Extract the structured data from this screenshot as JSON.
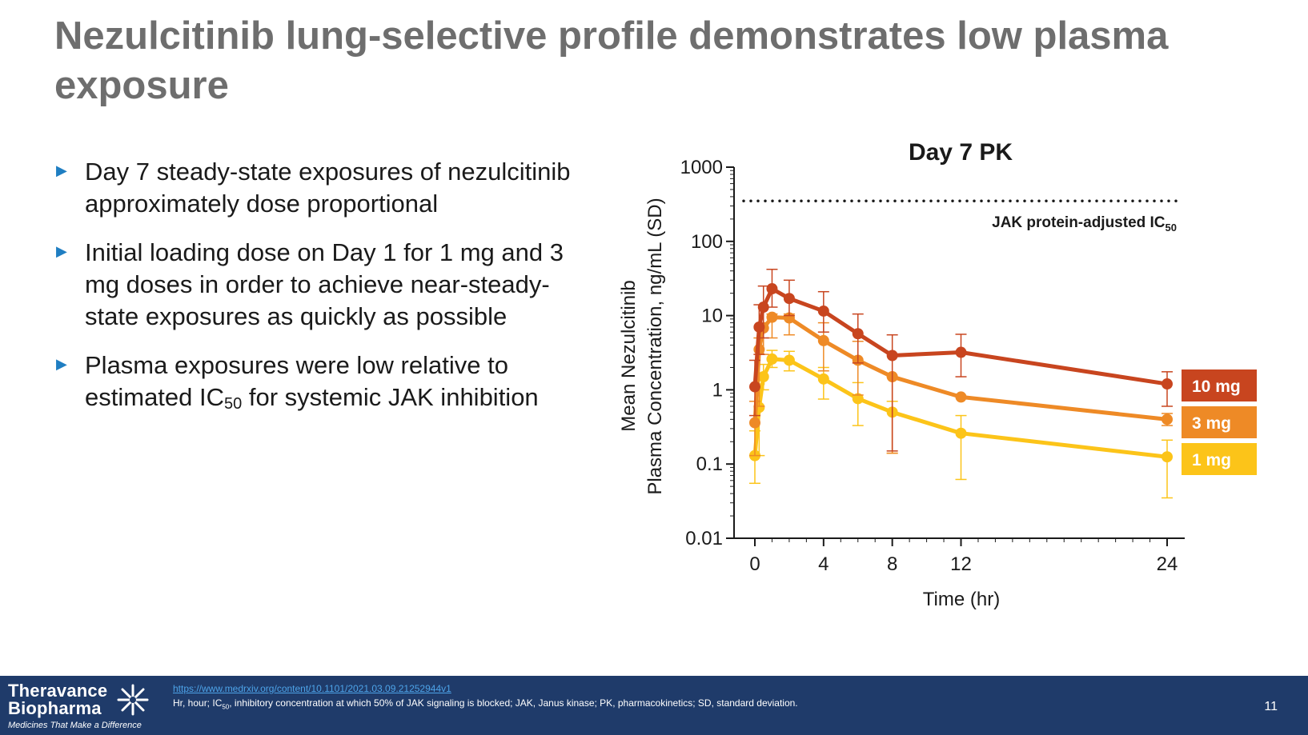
{
  "slide": {
    "title": "Nezulcitinib lung-selective profile demonstrates low plasma exposure",
    "bullets": [
      {
        "text": "Day 7 steady-state exposures of nezulcitinib approximately dose proportional"
      },
      {
        "text": "Initial loading dose on Day 1 for 1 mg and 3 mg doses in order to achieve near-steady-state exposures as quickly as possible"
      },
      {
        "pre": "Plasma exposures were low relative to estimated IC",
        "sub": "50",
        "post": " for systemic JAK inhibition"
      }
    ],
    "bullet_marker": "▶"
  },
  "chart_data": {
    "type": "line",
    "title": "Day 7 PK",
    "xlabel": "Time (hr)",
    "ylabel_line1": "Mean Nezulcitinib",
    "ylabel_line2": "Plasma Concentration, ng/mL (SD)",
    "y_scale": "log",
    "ylim": [
      0.01,
      1000
    ],
    "xlim": [
      0,
      24
    ],
    "x_ticks": [
      0,
      4,
      8,
      12,
      24
    ],
    "x_tick_labels": [
      "0",
      "4",
      "8",
      "12",
      "24"
    ],
    "y_ticks": [
      0.01,
      0.1,
      1,
      10,
      100,
      1000
    ],
    "y_tick_labels": [
      "0.01",
      "0.1",
      "1",
      "10",
      "100",
      "1000"
    ],
    "reference_line": {
      "y": 350,
      "label_main": "JAK protein-adjusted IC",
      "label_sub": "50",
      "style": "dotted"
    },
    "series": [
      {
        "name": "10 mg",
        "color": "#c8451f",
        "x": [
          0,
          0.25,
          0.5,
          1,
          2,
          4,
          6,
          8,
          12,
          24
        ],
        "y": [
          1.1,
          7,
          13,
          23,
          17,
          11.5,
          5.7,
          2.9,
          3.2,
          1.2
        ],
        "err_low": [
          0.45,
          3,
          5,
          13,
          10,
          6,
          2.3,
          0.15,
          1.5,
          0.6
        ],
        "err_high": [
          2.5,
          14,
          25,
          42,
          30,
          21,
          10.5,
          5.5,
          5.6,
          1.75
        ]
      },
      {
        "name": "3 mg",
        "color": "#ee8a26",
        "x": [
          0,
          0.25,
          0.5,
          1,
          2,
          4,
          6,
          8,
          12,
          24
        ],
        "y": [
          0.36,
          3.5,
          6.8,
          9.5,
          9.3,
          4.6,
          2.5,
          1.5,
          0.8,
          0.4
        ],
        "err_low": [
          0.13,
          0.6,
          3,
          5,
          5.5,
          1.8,
          0.85,
          0.14,
          0.8,
          0.33
        ],
        "err_high": [
          0.7,
          5,
          8,
          10.5,
          10.5,
          8,
          4.5,
          1.5,
          0.8,
          0.48
        ]
      },
      {
        "name": "1 mg",
        "color": "#fcc419",
        "x": [
          0,
          0.25,
          0.5,
          1,
          2,
          4,
          6,
          8,
          12,
          24
        ],
        "y": [
          0.13,
          0.58,
          1.5,
          2.6,
          2.5,
          1.4,
          0.76,
          0.5,
          0.26,
          0.125
        ],
        "err_low": [
          0.055,
          0.13,
          1.0,
          2.0,
          1.8,
          0.75,
          0.33,
          0.14,
          0.062,
          0.035
        ],
        "err_high": [
          0.28,
          1.2,
          2.2,
          3.4,
          3.3,
          2.0,
          1.25,
          0.7,
          0.45,
          0.21
        ]
      }
    ],
    "legend_placement": "right"
  },
  "footer": {
    "logo_line1": "Theravance",
    "logo_line2": "Biopharma",
    "logo_tagline": "Medicines That Make a Difference",
    "logo_icon": "star-burst-icon",
    "link": "https://www.medrxiv.org/content/10.1101/2021.03.09.21252944v1",
    "note_pre": "Hr, hour; IC",
    "note_sub": "50",
    "note_post": ", inhibitory concentration at which 50% of JAK signaling is blocked; JAK, Janus kinase; PK, pharmacokinetics; SD, standard deviation.",
    "page_number": "11",
    "bg_color": "#1f3b6a"
  }
}
